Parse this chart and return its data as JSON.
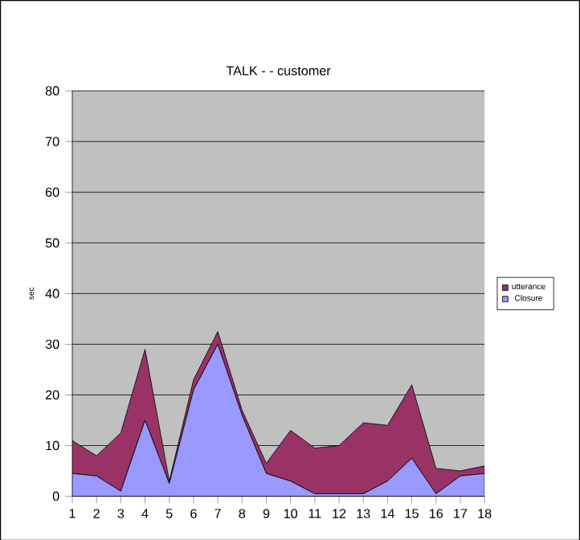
{
  "chart_data": {
    "type": "area",
    "title": "TALK - - customer",
    "ylabel": "sec",
    "categories": [
      "1",
      "2",
      "3",
      "4",
      "5",
      "6",
      "7",
      "8",
      "9",
      "10",
      "11",
      "12",
      "13",
      "14",
      "15",
      "16",
      "17",
      "18"
    ],
    "series": [
      {
        "name": "Closure",
        "color": "#9999ff",
        "values": [
          4.5,
          4,
          1,
          15,
          2.5,
          21,
          30,
          16,
          4.5,
          3,
          0.5,
          0.5,
          0.5,
          3,
          7.5,
          0.5,
          4,
          4.5
        ]
      },
      {
        "name": "utterance",
        "color": "#993366",
        "values": [
          6.5,
          4,
          11.5,
          14,
          0.5,
          2,
          2.5,
          1,
          2,
          10,
          9,
          9.5,
          14,
          11,
          14.5,
          5,
          1,
          1.5
        ]
      }
    ],
    "stacked": true,
    "ylim": [
      0,
      80
    ],
    "yticks": [
      0,
      10,
      20,
      30,
      40,
      50,
      60,
      70,
      80
    ],
    "grid": "y",
    "legend": "right"
  }
}
